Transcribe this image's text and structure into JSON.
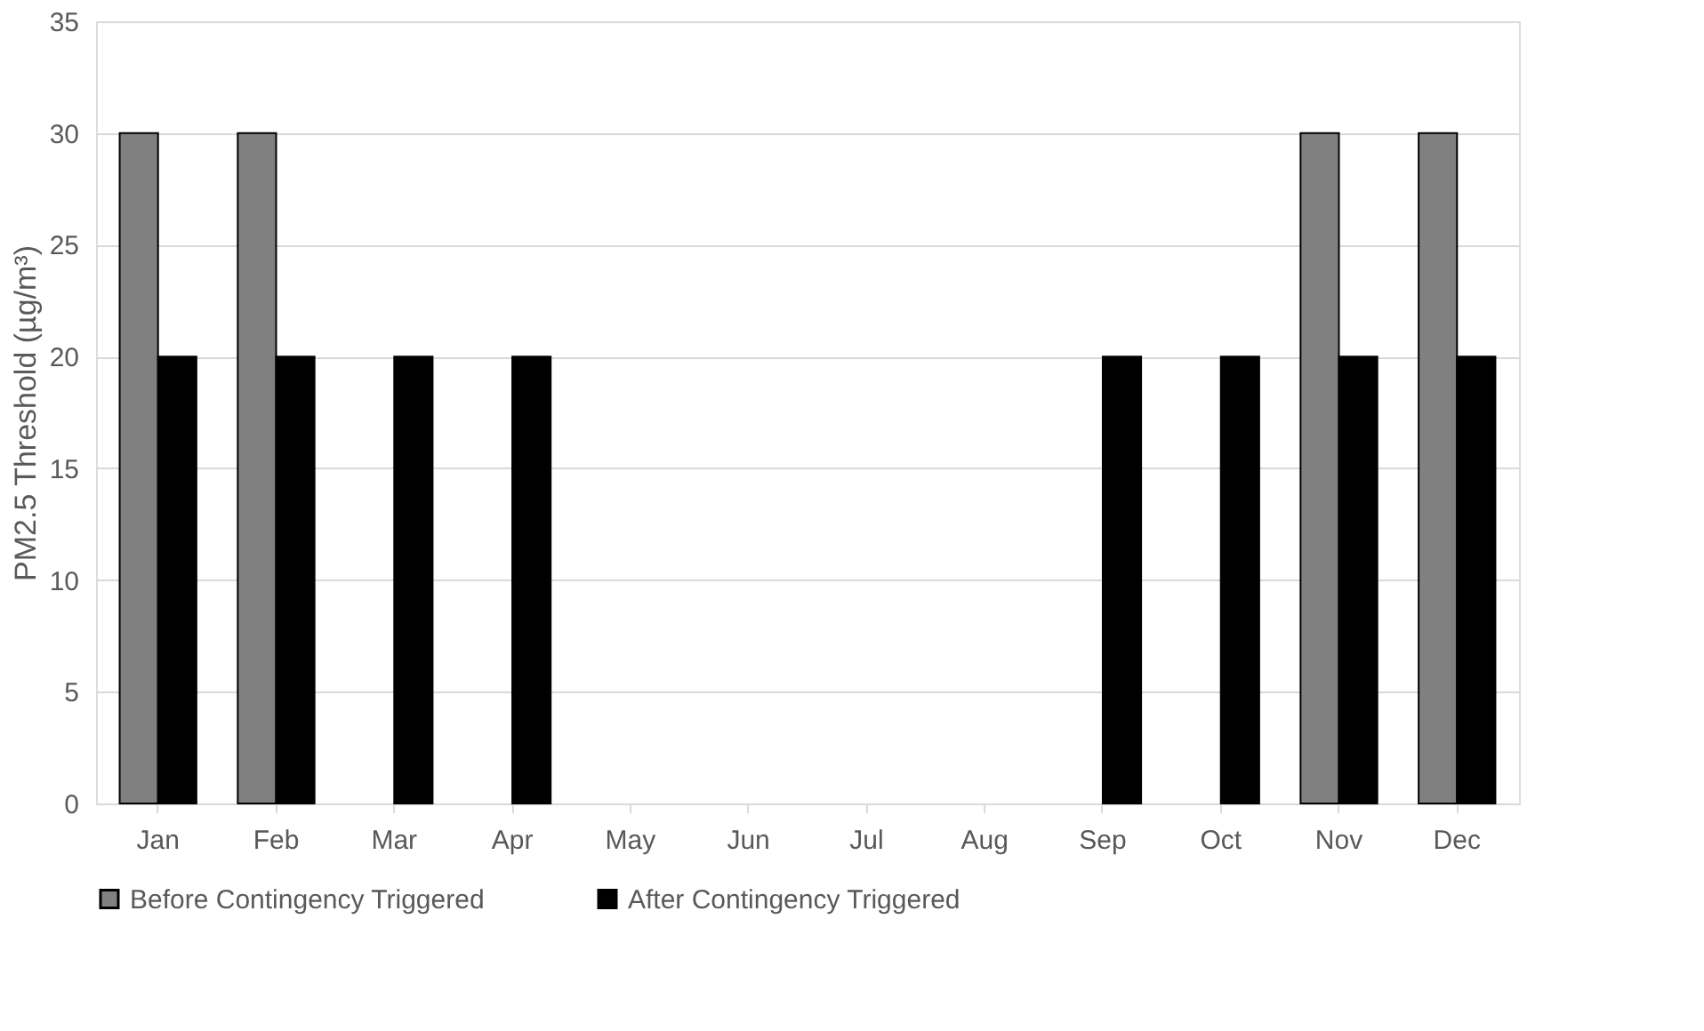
{
  "chart_data": {
    "type": "bar",
    "ylabel": "PM2.5 Threshold (µg/m³)",
    "categories": [
      "Jan",
      "Feb",
      "Mar",
      "Apr",
      "May",
      "Jun",
      "Jul",
      "Aug",
      "Sep",
      "Oct",
      "Nov",
      "Dec"
    ],
    "series": [
      {
        "name": "Before Contingency Triggered",
        "color": "#808080",
        "values": [
          30,
          30,
          null,
          null,
          null,
          null,
          null,
          null,
          null,
          null,
          30,
          30
        ]
      },
      {
        "name": "After Contingency Triggered",
        "color": "#000000",
        "values": [
          20,
          20,
          20,
          20,
          null,
          null,
          null,
          null,
          20,
          20,
          20,
          20
        ]
      }
    ],
    "ylim": [
      0,
      35
    ],
    "yticks": [
      0,
      5,
      10,
      15,
      20,
      25,
      30,
      35
    ],
    "grid": "y",
    "legend": "bottom"
  }
}
